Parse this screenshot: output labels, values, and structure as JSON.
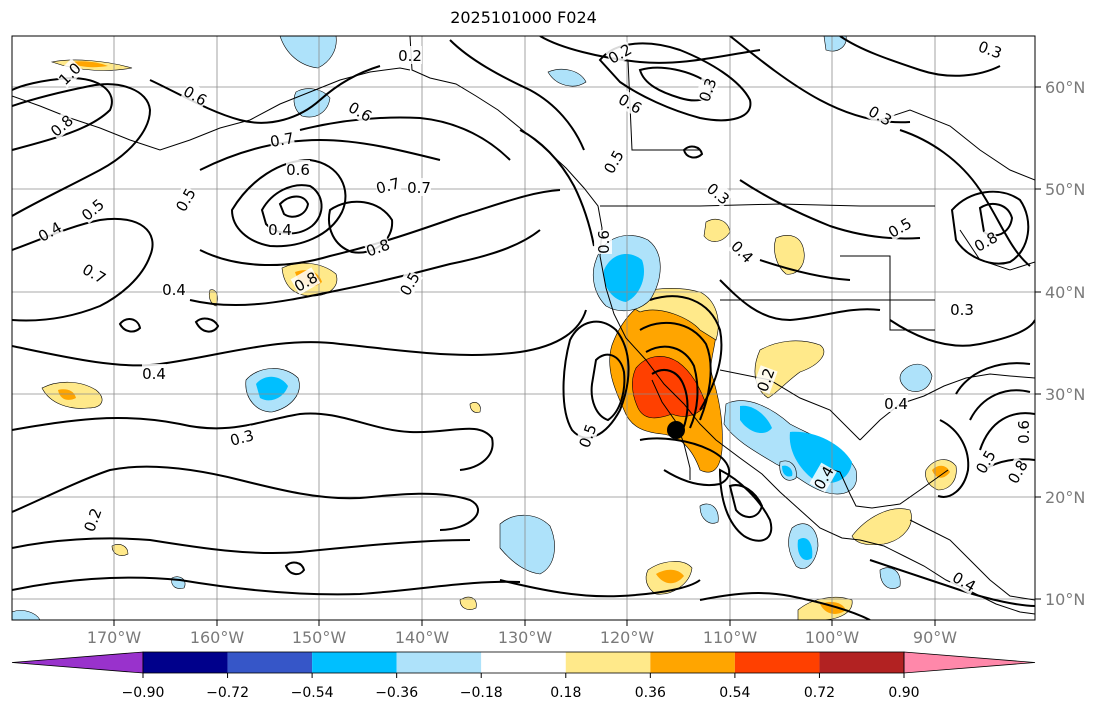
{
  "title": "2025101000 F024",
  "lon_ticks": [
    "170°W",
    "160°W",
    "150°W",
    "140°W",
    "130°W",
    "120°W",
    "110°W",
    "100°W",
    "90°W"
  ],
  "lat_ticks": [
    "60°N",
    "50°N",
    "40°N",
    "30°N",
    "20°N",
    "10°N"
  ],
  "colorbar": {
    "colors": [
      "#9932cc",
      "#00008b",
      "#3656c8",
      "#00bfff",
      "#aee2fa",
      "#ffffff",
      "#ffe98a",
      "#ffa500",
      "#ff4000",
      "#b22222",
      "#ff88aa"
    ],
    "tick_labels": [
      "−0.90",
      "−0.72",
      "−0.54",
      "−0.36",
      "−0.18",
      "0.18",
      "0.36",
      "0.54",
      "0.72",
      "0.90"
    ]
  },
  "contour_labels": [
    "0.2",
    "0.3",
    "0.4",
    "0.5",
    "0.6",
    "0.7",
    "0.8",
    "1.0"
  ],
  "placed_labels": [
    "0.2",
    "0.8",
    "1.0",
    "0.6",
    "0.6",
    "0.7",
    "0.6",
    "0.7",
    "0.5",
    "0.4",
    "0.5",
    "0.4",
    "0.7",
    "0.4",
    "0.3",
    "0.5",
    "0.8",
    "0.7",
    "0.8",
    "0.5",
    "0.4",
    "0.3",
    "0.5",
    "0.6",
    "0.6",
    "0.8",
    "0.4",
    "0.2",
    "0.5",
    "0.4",
    "0.2",
    "0.3",
    "0.6",
    "0.5",
    "0.3",
    "0.2",
    "0.4",
    "0.4",
    "0.8",
    "0.3",
    "0.3"
  ]
}
